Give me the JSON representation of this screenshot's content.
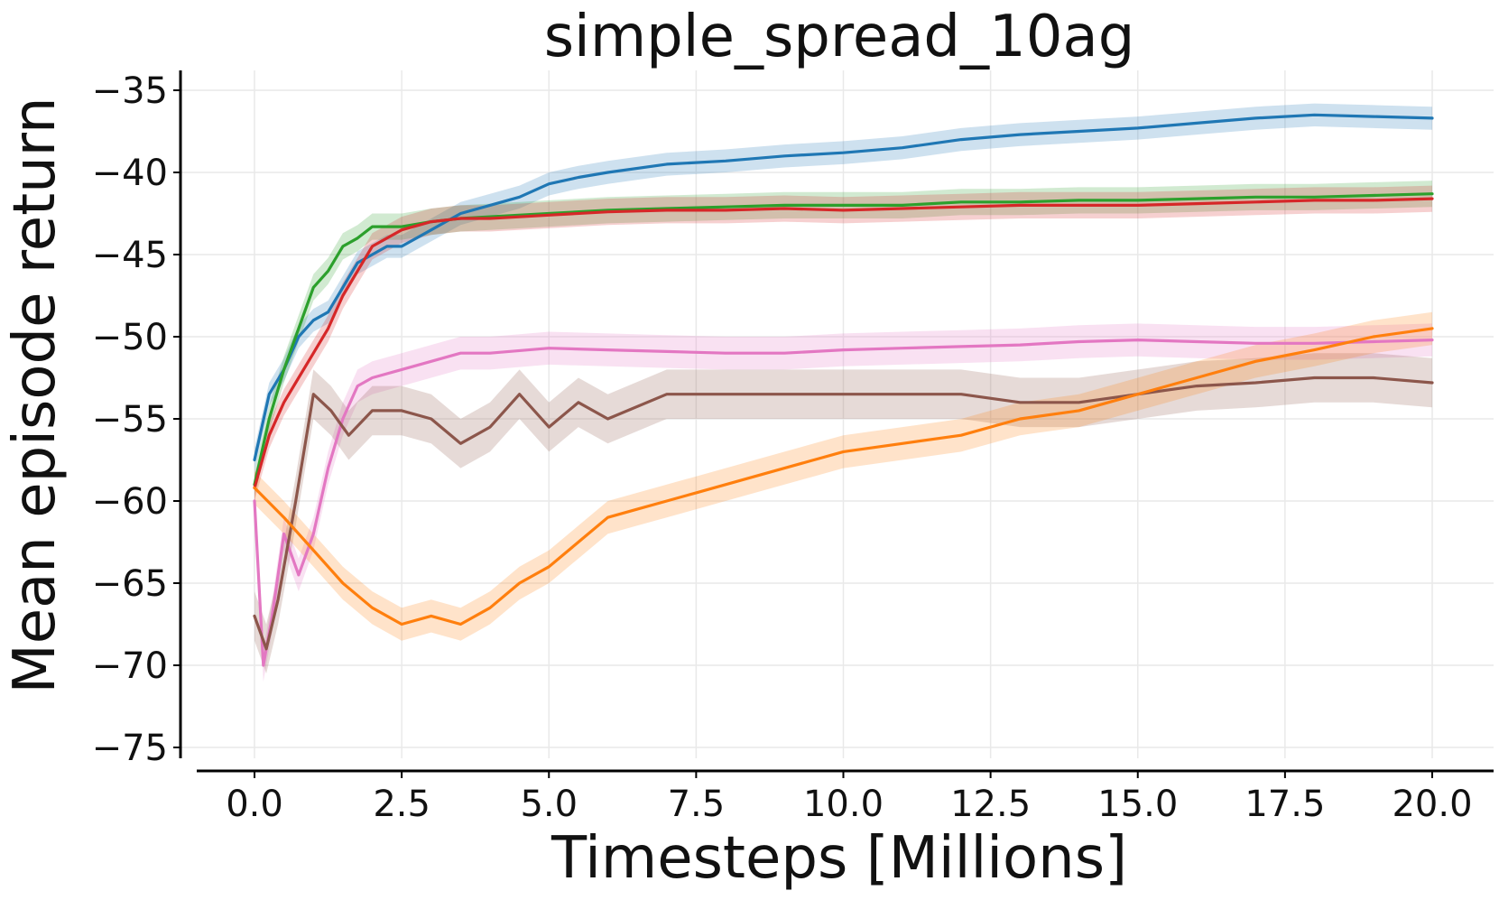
{
  "chart_data": {
    "type": "line",
    "title": "simple_spread_10ag",
    "xlabel": "Timesteps [Millions]",
    "ylabel": "Mean episode return",
    "xlim": [
      -1,
      21
    ],
    "ylim": [
      -75.5,
      -34.5
    ],
    "xticks": [
      0,
      2.5,
      5,
      7.5,
      10,
      12.5,
      15,
      17.5,
      20
    ],
    "xtick_labels": [
      "0.0",
      "2.5",
      "5.0",
      "7.5",
      "10.0",
      "12.5",
      "15.0",
      "17.5",
      "20.0"
    ],
    "yticks": [
      -35,
      -40,
      -45,
      -50,
      -55,
      -60,
      -65,
      -70,
      -75
    ],
    "ytick_labels": [
      "−35",
      "−40",
      "−45",
      "−50",
      "−55",
      "−60",
      "−65",
      "−70",
      "−75"
    ],
    "grid": true,
    "legend": "none",
    "series": [
      {
        "color": "#1f77b4",
        "x": [
          0,
          0.25,
          0.5,
          0.75,
          1,
          1.25,
          1.5,
          1.75,
          2,
          2.25,
          2.5,
          3,
          3.5,
          4,
          4.5,
          5,
          5.5,
          6,
          7,
          8,
          9,
          10,
          11,
          12,
          13,
          14,
          15,
          16,
          17,
          18,
          19,
          20
        ],
        "y": [
          -57.5,
          -53.5,
          -52,
          -50,
          -49,
          -48.5,
          -47,
          -45.5,
          -45,
          -44.5,
          -44.5,
          -43.5,
          -42.5,
          -42,
          -41.5,
          -40.7,
          -40.3,
          -40,
          -39.5,
          -39.3,
          -39,
          -38.8,
          -38.5,
          -38,
          -37.7,
          -37.5,
          -37.3,
          -37,
          -36.7,
          -36.5,
          -36.6,
          -36.7
        ],
        "band": 0.7
      },
      {
        "color": "#2ca02c",
        "x": [
          0,
          0.25,
          0.5,
          0.75,
          1,
          1.25,
          1.5,
          1.75,
          2,
          2.5,
          3,
          3.5,
          4,
          5,
          6,
          7,
          8,
          9,
          10,
          11,
          12,
          13,
          14,
          15,
          16,
          17,
          18,
          19,
          20
        ],
        "y": [
          -59,
          -55,
          -52,
          -49.5,
          -47,
          -46,
          -44.5,
          -44,
          -43.3,
          -43.3,
          -43,
          -42.8,
          -42.7,
          -42.5,
          -42.3,
          -42.2,
          -42.1,
          -42,
          -42,
          -42,
          -41.8,
          -41.8,
          -41.7,
          -41.7,
          -41.6,
          -41.5,
          -41.5,
          -41.4,
          -41.3
        ],
        "band": 0.8
      },
      {
        "color": "#d62728",
        "x": [
          0,
          0.25,
          0.5,
          0.75,
          1,
          1.25,
          1.5,
          1.75,
          2,
          2.5,
          3,
          3.5,
          4,
          5,
          6,
          7,
          8,
          9,
          10,
          11,
          12,
          13,
          14,
          15,
          16,
          17,
          18,
          19,
          20
        ],
        "y": [
          -59.2,
          -56,
          -54,
          -52.5,
          -51,
          -49.5,
          -47.5,
          -46,
          -44.5,
          -43.5,
          -43,
          -42.8,
          -42.8,
          -42.6,
          -42.4,
          -42.3,
          -42.3,
          -42.2,
          -42.3,
          -42.2,
          -42.1,
          -42,
          -42,
          -42,
          -41.9,
          -41.8,
          -41.7,
          -41.7,
          -41.6
        ],
        "band": 0.8
      },
      {
        "color": "#e377c2",
        "x": [
          0,
          0.15,
          0.3,
          0.5,
          0.75,
          1,
          1.25,
          1.5,
          1.75,
          2,
          2.5,
          3,
          3.5,
          4,
          5,
          6,
          7,
          8,
          9,
          10,
          11,
          12,
          13,
          14,
          15,
          16,
          17,
          18,
          19,
          20
        ],
        "y": [
          -60,
          -70,
          -67,
          -62,
          -64.5,
          -62,
          -58,
          -55,
          -53,
          -52.5,
          -52,
          -51.5,
          -51,
          -51,
          -50.7,
          -50.8,
          -50.9,
          -51,
          -51,
          -50.8,
          -50.7,
          -50.6,
          -50.5,
          -50.3,
          -50.2,
          -50.3,
          -50.4,
          -50.4,
          -50.3,
          -50.2
        ],
        "band": 1.0
      },
      {
        "color": "#8c564b",
        "x": [
          0,
          0.2,
          0.4,
          0.7,
          1,
          1.3,
          1.6,
          2,
          2.5,
          3,
          3.5,
          4,
          4.5,
          5,
          5.5,
          6,
          7,
          8,
          9,
          10,
          11,
          12,
          13,
          14,
          15,
          16,
          17,
          18,
          19,
          20
        ],
        "y": [
          -67,
          -69,
          -66,
          -60,
          -53.5,
          -54.5,
          -56,
          -54.5,
          -54.5,
          -55,
          -56.5,
          -55.5,
          -53.5,
          -55.5,
          -54,
          -55,
          -53.5,
          -53.5,
          -53.5,
          -53.5,
          -53.5,
          -53.5,
          -54,
          -54,
          -53.5,
          -53,
          -52.8,
          -52.5,
          -52.5,
          -52.8
        ],
        "band": 1.5
      },
      {
        "color": "#ff7f0e",
        "x": [
          0,
          0.5,
          1,
          1.5,
          2,
          2.5,
          3,
          3.5,
          4,
          4.5,
          5,
          5.5,
          6,
          6.5,
          7,
          7.5,
          8,
          8.5,
          9,
          9.5,
          10,
          11,
          12,
          13,
          14,
          15,
          16,
          17,
          18,
          19,
          20
        ],
        "y": [
          -59.2,
          -61,
          -63,
          -65,
          -66.5,
          -67.5,
          -67,
          -67.5,
          -66.5,
          -65,
          -64,
          -62.5,
          -61,
          -60.5,
          -60,
          -59.5,
          -59,
          -58.5,
          -58,
          -57.5,
          -57,
          -56.5,
          -56,
          -55,
          -54.5,
          -53.5,
          -52.5,
          -51.5,
          -50.8,
          -50,
          -49.5
        ],
        "band": 1.0
      }
    ]
  }
}
